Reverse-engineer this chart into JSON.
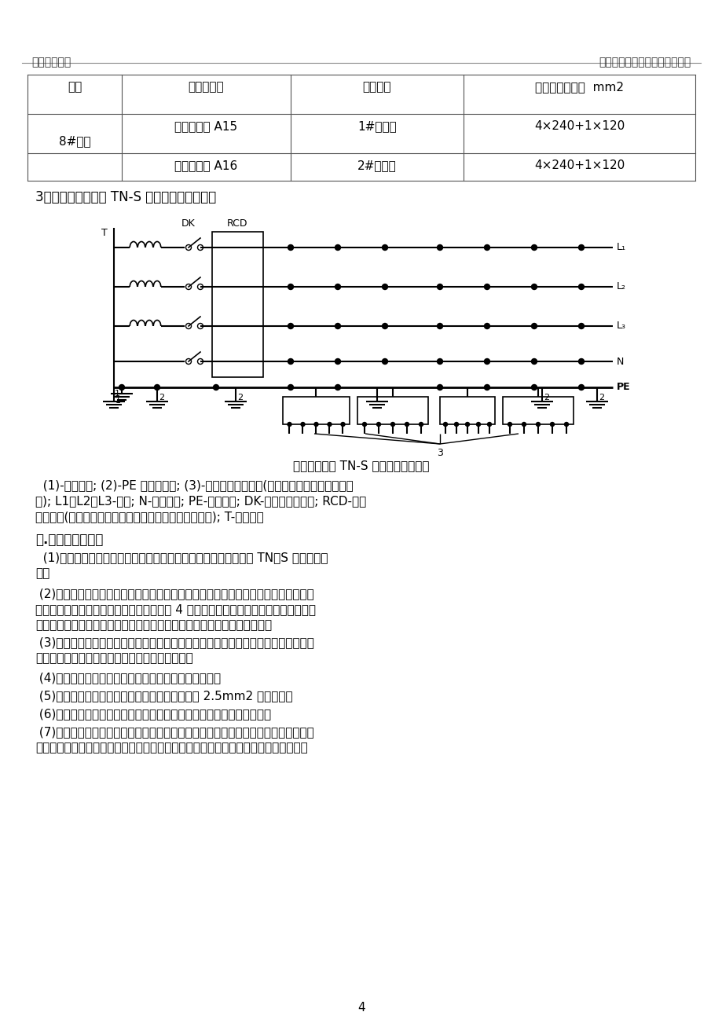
{
  "page_title_left": "湘潭万达广场",
  "page_title_right": "施工现场临时用电专项施工方案",
  "table_headers": [
    "箱变",
    "一级配电柜",
    "供电区域",
    "选择的电缆截面  mm2"
  ],
  "table_rows": [
    [
      "8#箱变",
      "一级配电柜 A15",
      "1#住宅楼",
      "4×240+1×120"
    ],
    [
      "8#箱变",
      "一级配电柜 A16",
      "2#住宅楼",
      "4×240+1×120"
    ]
  ],
  "section3_title": "3．现场供配电采用 TN-S 接零保护系统如下图",
  "diagram_caption": "变压器供电时 TN-S 接零保护系统示意",
  "description1": "  (1)-工作接地; (2)-PE 线重复接地; (3)-电气设备金属外壳(正常不带电的外露可导电部",
  "description2": "分); L1、L2、L3-相线; N-工作零线; PE-保护零线; DK-总电源隔离开关; RCD-总漏",
  "description3": "电保护器(兼有短路、过载、漏电保护功能的漏电断路器); T-变压器。",
  "section4_title": "四.接地与防雷措施",
  "para1": "  (1)在施工现场专用的中性点、直接接地的电力线路中，必须采用 TN－S 接零保护系",
  "para1b": "统。",
  "para2": " (2)作防雷接地的电气设备，必须同时作重复接地。同一台电气设备的重复接地与防雷",
  "para2b": "接地可使用同一接地体，接地电阻应不大于 4 欧姆。施工现场的电气设备和避雷装置可",
  "para2c": "利用自然接地体接地。但应保证电气连接，并检验自然接地体的热稳定性。",
  "para3": " (3)在只允许做保护接地的系统中，因条件限制接地有困难时，应设置操作和维修电气",
  "para3b": "的绝缘台，并必须使操作人员不致偶然触及外物。",
  "para4": " (4)施工现场的电力系统，严禁利用大地作相线或零线。",
  "para5": " (5)与电气设备相连接的保护零线应为截面不小于 2.5mm2 多股铜线。",
  "para6": " (6)保护零线的统一标志为绿／黄双色。在任何情况下不准作为负荷线。",
  "para7": " (7)在总配电箱、分配电箱、塔吊、电梯等处设置重复接地和防雷接地。重复接地在安",
  "para7b": "装、验收、测试、交付使用后，现场电工必须每月进行不少于一次的检查检测，电阻值",
  "page_number": "4",
  "bg_color": "#ffffff",
  "text_color": "#000000",
  "line_color": "#000000"
}
